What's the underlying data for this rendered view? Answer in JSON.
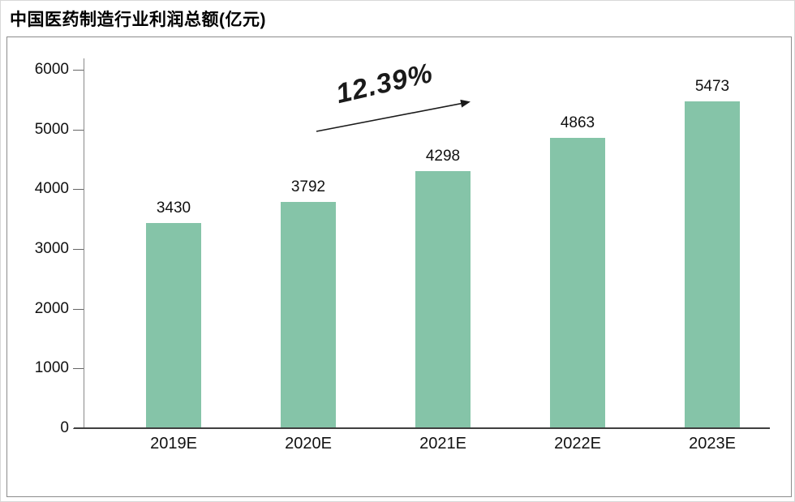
{
  "chart_data": {
    "type": "bar",
    "title": "中国医药制造行业利润总额(亿元)",
    "categories": [
      "2019E",
      "2020E",
      "2021E",
      "2022E",
      "2023E"
    ],
    "values": [
      3430,
      3792,
      4298,
      4863,
      5473
    ],
    "ylim": [
      0,
      6000
    ],
    "yticks": [
      0,
      1000,
      2000,
      3000,
      4000,
      5000,
      6000
    ],
    "xlabel": "",
    "ylabel": "",
    "grid": false,
    "legend": false,
    "bar_color": "#85c4a8",
    "annotation": {
      "label": "12.39%"
    }
  },
  "colors": {
    "bar": "#85c4a8",
    "axis": "#3f3f3f",
    "frame_border": "#8c8c8c",
    "text": "#111111"
  }
}
